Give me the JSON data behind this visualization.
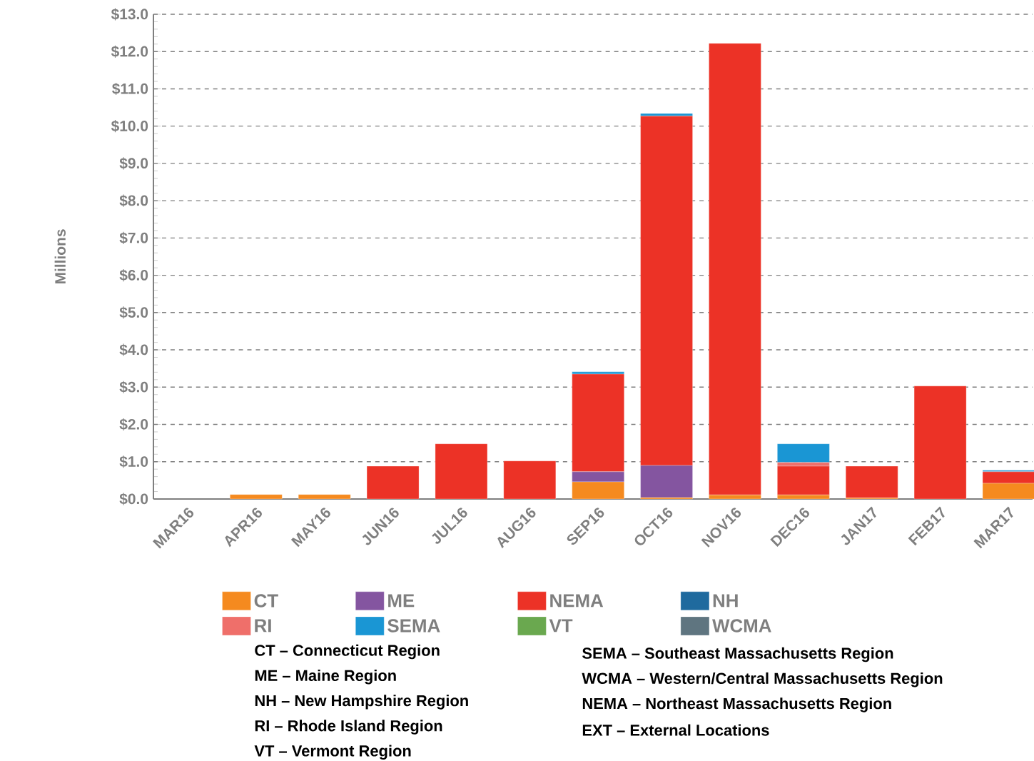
{
  "chart_data": {
    "type": "bar",
    "stacked": true,
    "ylabel": "Millions",
    "categories": [
      "MAR16",
      "APR16",
      "MAY16",
      "JUN16",
      "JUL16",
      "AUG16",
      "SEP16",
      "OCT16",
      "NOV16",
      "DEC16",
      "JAN17",
      "FEB17",
      "MAR17"
    ],
    "series": [
      {
        "name": "CT",
        "color": "#f58a1f",
        "values": [
          0,
          0.12,
          0.12,
          0,
          0,
          0,
          0.46,
          0.04,
          0.11,
          0.11,
          0.03,
          0,
          0.42
        ]
      },
      {
        "name": "ME",
        "color": "#8455a0",
        "values": [
          0,
          0,
          0,
          0,
          0,
          0,
          0.27,
          0.86,
          0,
          0,
          0,
          0,
          0
        ]
      },
      {
        "name": "NEMA",
        "color": "#ec3226",
        "values": [
          0,
          0,
          0,
          0.88,
          1.48,
          1.02,
          2.62,
          9.37,
          12.11,
          0.77,
          0.85,
          3.03,
          0.31
        ]
      },
      {
        "name": "NH",
        "color": "#1f6a9e",
        "values": [
          0,
          0,
          0,
          0,
          0,
          0,
          0,
          0,
          0,
          0,
          0,
          0,
          0
        ]
      },
      {
        "name": "RI",
        "color": "#ef6f6a",
        "values": [
          0,
          0,
          0,
          0,
          0,
          0,
          0,
          0,
          0,
          0.1,
          0,
          0,
          0
        ]
      },
      {
        "name": "SEMA",
        "color": "#1a96d4",
        "values": [
          0,
          0,
          0,
          0,
          0,
          0,
          0.06,
          0.07,
          0,
          0.5,
          0,
          0,
          0.04
        ]
      },
      {
        "name": "VT",
        "color": "#6aa84f",
        "values": [
          0,
          0,
          0,
          0,
          0,
          0,
          0,
          0,
          0,
          0,
          0,
          0,
          0
        ]
      },
      {
        "name": "WCMA",
        "color": "#5f7580",
        "values": [
          0,
          0,
          0,
          0,
          0,
          0,
          0,
          0,
          0,
          0,
          0,
          0,
          0
        ]
      }
    ],
    "ylim": [
      0,
      13
    ],
    "yticks": [
      {
        "value": 0,
        "label": "$0.0"
      },
      {
        "value": 1,
        "label": "$1.0"
      },
      {
        "value": 2,
        "label": "$2.0"
      },
      {
        "value": 3,
        "label": "$3.0"
      },
      {
        "value": 4,
        "label": "$4.0"
      },
      {
        "value": 5,
        "label": "$5.0"
      },
      {
        "value": 6,
        "label": "$6.0"
      },
      {
        "value": 7,
        "label": "$7.0"
      },
      {
        "value": 8,
        "label": "$8.0"
      },
      {
        "value": 9,
        "label": "$9.0"
      },
      {
        "value": 10,
        "label": "$10.0"
      },
      {
        "value": 11,
        "label": "$11.0"
      },
      {
        "value": 12,
        "label": "$12.0"
      },
      {
        "value": 13,
        "label": "$13.0"
      }
    ],
    "grid": "y",
    "legend": "bottom",
    "annotations": [
      "CT – Connecticut Region",
      "ME – Maine Region",
      "NH – New Hampshire Region",
      "RI – Rhode Island Region",
      "VT – Vermont Region",
      "SEMA – Southeast Massachusetts Region",
      "WCMA – Western/Central Massachusetts Region",
      "NEMA – Northeast Massachusetts Region",
      "EXT – External Locations"
    ]
  }
}
